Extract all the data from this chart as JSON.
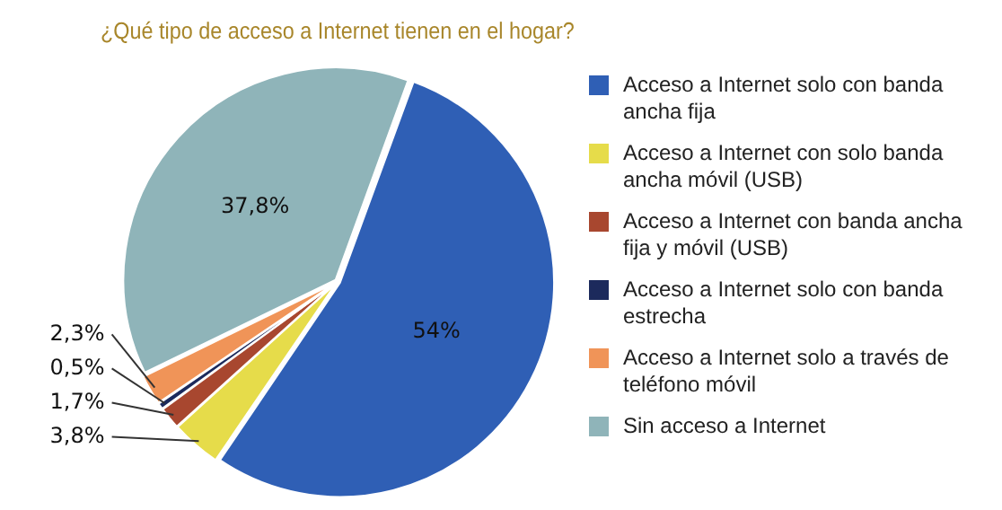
{
  "chart_data": {
    "type": "pie",
    "title": "¿Qué tipo de acceso a Internet tienen en el hogar?",
    "categories": [
      "Acceso a Internet solo con banda ancha fija",
      "Acceso a Internet con solo banda ancha móvil (USB)",
      "Acceso a Internet con banda ancha fija y móvil (USB)",
      "Acceso a Internet  solo con banda estrecha",
      "Acceso a Internet solo a través de teléfono móvil",
      "Sin acceso a Internet"
    ],
    "values": [
      54,
      3.8,
      1.7,
      0.5,
      2.3,
      37.8
    ],
    "colors": [
      "#2f5fb5",
      "#e6dc4a",
      "#a8472f",
      "#1c2a5c",
      "#f09458",
      "#8fb4b9"
    ],
    "value_labels": [
      "54%",
      "3,8%",
      "1,7%",
      "0,5%",
      "2,3%",
      "37,8%"
    ],
    "legend": "right"
  }
}
